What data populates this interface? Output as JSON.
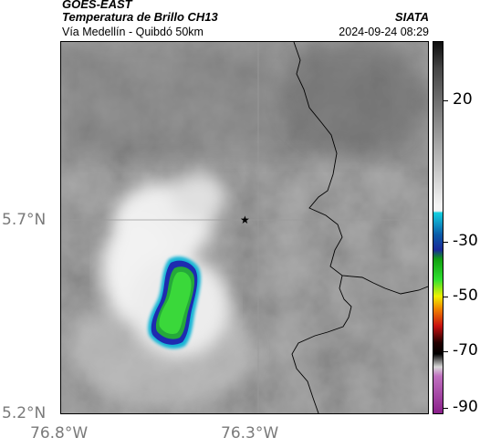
{
  "header": {
    "title": "GOES-EAST",
    "subtitle": "Temperatura de Brillo CH13",
    "location": "Vía Medellín - Quibdó 50km",
    "organization": "SIATA",
    "datetime": "2024-09-24 08:29"
  },
  "map": {
    "lat_labels": [
      "5.7°N",
      "5.2°N"
    ],
    "lon_labels": [
      "76.8°W",
      "76.3°W"
    ],
    "marker_icon": "star-icon",
    "colors": {
      "background_gray": "#8c8c8c",
      "cloud_light": "#ededed",
      "cold_core_green": "#29c329",
      "edge_blue": "#1e2bb0",
      "edge_cyan": "#13b5d6",
      "border_line": "#000000"
    }
  },
  "colorbar": {
    "tick_labels": [
      "20",
      "-30",
      "-50",
      "-70",
      "-90"
    ],
    "colors": {
      "top": "#111111",
      "gray_mid": "#909090",
      "white": "#f6f6f6",
      "cyan": "#00c8e0",
      "blue": "#1d2ea8",
      "green": "#1ec81e",
      "yellow": "#f0f000",
      "red": "#d81414",
      "black": "#000000",
      "magenta": "#a030a0"
    }
  }
}
